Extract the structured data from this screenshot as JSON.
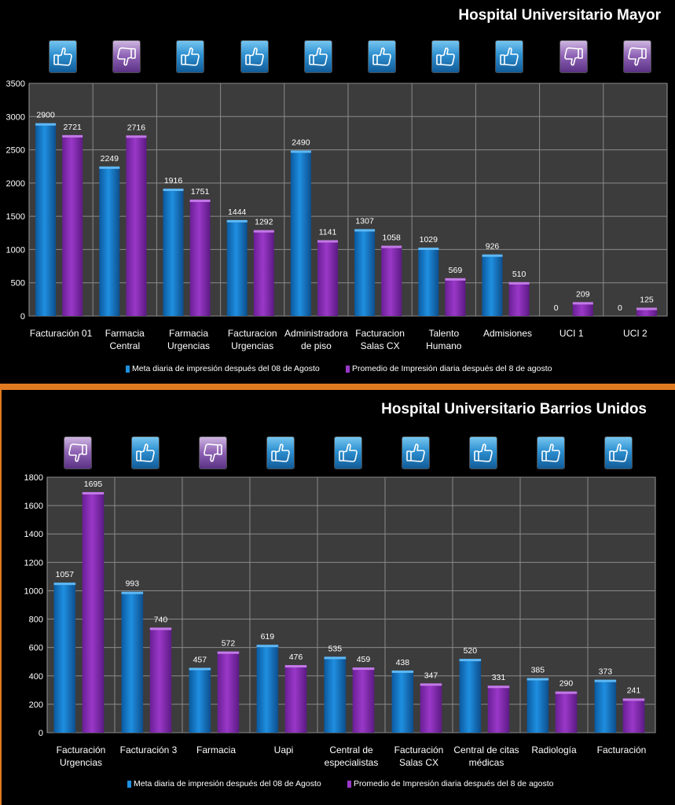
{
  "legend": {
    "meta_label": "Meta diaria de impresión después del 08 de Agosto",
    "promedio_label": "Promedio de Impresión diaria después del 8 de agosto"
  },
  "colors": {
    "meta": "#1f8fe0",
    "promedio": "#9a38c8",
    "plot_bg": "#3c3c3c",
    "grid": "#8a8a8a"
  },
  "icons": {
    "panel1": [
      "thumbs-up-icon",
      "thumbs-down-icon",
      "thumbs-up-icon",
      "thumbs-up-icon",
      "thumbs-up-icon",
      "thumbs-up-icon",
      "thumbs-up-icon",
      "thumbs-up-icon",
      "thumbs-down-icon",
      "thumbs-down-icon"
    ],
    "panel2": [
      "thumbs-down-icon",
      "thumbs-up-icon",
      "thumbs-down-icon",
      "thumbs-up-icon",
      "thumbs-up-icon",
      "thumbs-up-icon",
      "thumbs-up-icon",
      "thumbs-up-icon",
      "thumbs-up-icon"
    ]
  },
  "chart_data": [
    {
      "type": "bar",
      "title": "Hospital Universitario Mayor",
      "categories": [
        [
          "Facturación 01"
        ],
        [
          "Farmacia",
          "Central"
        ],
        [
          "Farmacia",
          "Urgencias"
        ],
        [
          "Facturacion",
          "Urgencias"
        ],
        [
          "Administradora",
          "de piso"
        ],
        [
          "Facturacion",
          "Salas CX"
        ],
        [
          "Talento",
          "Humano"
        ],
        [
          "Admisiones"
        ],
        [
          "UCI 1"
        ],
        [
          "UCI 2"
        ]
      ],
      "series": [
        {
          "name": "Meta diaria de impresión después del 08 de Agosto",
          "values": [
            2900,
            2249,
            1916,
            1444,
            2490,
            1307,
            1029,
            926,
            0,
            0
          ]
        },
        {
          "name": "Promedio de Impresión diaria después del 8 de agosto",
          "values": [
            2721,
            2716,
            1751,
            1292,
            1141,
            1058,
            569,
            510,
            209,
            125
          ]
        }
      ],
      "ylim": [
        0,
        3500
      ],
      "yticks": [
        0,
        500,
        1000,
        1500,
        2000,
        2500,
        3000,
        3500
      ],
      "grid": true,
      "legend_position": "bottom"
    },
    {
      "type": "bar",
      "title": "Hospital Universitario Barrios Unidos",
      "categories": [
        [
          "Facturación",
          "Urgencias"
        ],
        [
          "Facturación  3"
        ],
        [
          "Farmacia"
        ],
        [
          "Uapi"
        ],
        [
          "Central de",
          "especialistas"
        ],
        [
          "Facturación",
          "Salas CX"
        ],
        [
          "Central de citas",
          "médicas"
        ],
        [
          "Radiología"
        ],
        [
          "Facturación"
        ]
      ],
      "series": [
        {
          "name": "Meta diaria de impresión después del 08 de Agosto",
          "values": [
            1057,
            993,
            457,
            619,
            535,
            438,
            520,
            385,
            373
          ]
        },
        {
          "name": "Promedio de Impresión diaria después del 8 de agosto",
          "values": [
            1695,
            740,
            572,
            476,
            459,
            347,
            331,
            290,
            241
          ]
        }
      ],
      "ylim": [
        0,
        1800
      ],
      "yticks": [
        0,
        200,
        400,
        600,
        800,
        1000,
        1200,
        1400,
        1600,
        1800
      ],
      "grid": true,
      "legend_position": "bottom"
    }
  ]
}
